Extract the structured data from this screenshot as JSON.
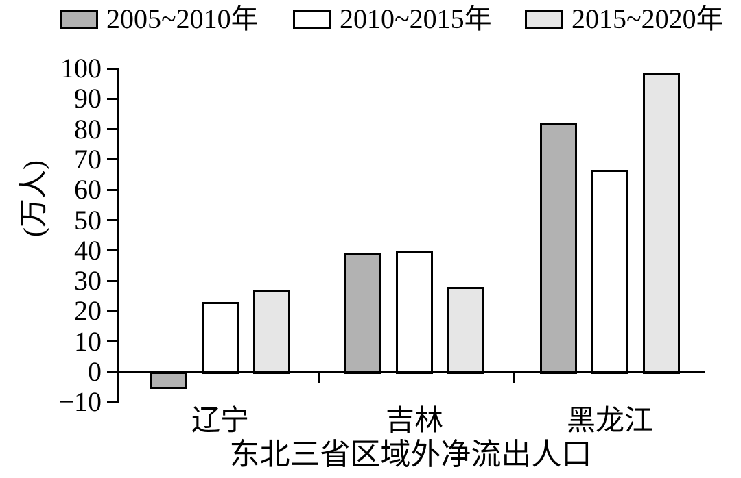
{
  "chart_data": {
    "type": "bar",
    "title": "东北三省区域外净流出人口",
    "ylabel": "(万人)",
    "xlabel": "",
    "categories": [
      "辽宁",
      "吉林",
      "黑龙江"
    ],
    "series": [
      {
        "name": "2005~2010年",
        "color": "#b2b2b2",
        "values": [
          -5,
          39,
          82
        ]
      },
      {
        "name": "2010~2015年",
        "color": "#ffffff",
        "values": [
          23,
          40,
          66.5
        ]
      },
      {
        "name": "2015~2020年",
        "color": "#e6e6e6",
        "values": [
          27,
          28,
          98.5
        ]
      }
    ],
    "ylim": [
      -10,
      100
    ],
    "yticks": [
      -10,
      0,
      10,
      20,
      30,
      40,
      50,
      60,
      70,
      80,
      90,
      100
    ],
    "legend_position": "top",
    "grid": false,
    "axis_color": "#000000",
    "bar_edge_color": "#000000"
  }
}
